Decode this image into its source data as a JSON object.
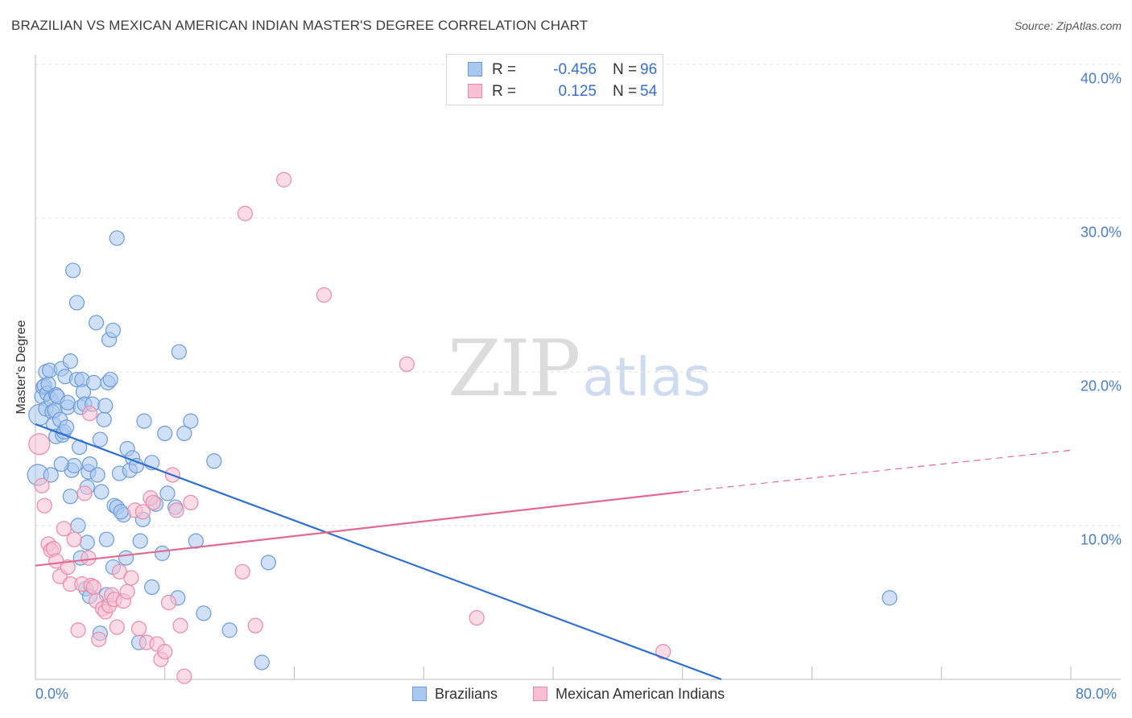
{
  "title": "BRAZILIAN VS MEXICAN AMERICAN INDIAN MASTER'S DEGREE CORRELATION CHART",
  "source": "Source: ZipAtlas.com",
  "watermark": {
    "zip": "ZIP",
    "atlas": "atlas"
  },
  "colors": {
    "blue_fill": "#a9c8f0",
    "blue_stroke": "#6d9ad8",
    "blue_line": "#2f6fcf",
    "pink_fill": "#f7bfd1",
    "pink_stroke": "#e88aa8",
    "pink_line": "#e06a92",
    "grid": "#e2e2e2",
    "tick_text": "#4a7cc8"
  },
  "legend_top": [
    {
      "r_label": "R =",
      "r_value": "-0.456",
      "n_label": "N =",
      "n_value": "96",
      "color": "blue"
    },
    {
      "r_label": "R =",
      "r_value": "0.125",
      "n_label": "N =",
      "n_value": "54",
      "color": "pink"
    }
  ],
  "legend_bottom": [
    {
      "label": "Brazilians",
      "color": "blue"
    },
    {
      "label": "Mexican American Indians",
      "color": "pink"
    }
  ],
  "chart_data": {
    "type": "scatter",
    "title": "BRAZILIAN VS MEXICAN AMERICAN INDIAN MASTER'S DEGREE CORRELATION CHART",
    "xlabel": "",
    "ylabel": "Master's Degree",
    "xlim": [
      0,
      80
    ],
    "ylim": [
      0,
      40
    ],
    "x_tick_labels": [
      "0.0%",
      "80.0%"
    ],
    "y_ticks": [
      10,
      20,
      30,
      40
    ],
    "y_tick_labels": [
      "10.0%",
      "20.0%",
      "30.0%",
      "40.0%"
    ],
    "grid": true,
    "legend_position": "top-center",
    "series": [
      {
        "name": "Brazilians",
        "color": "#a9c8f0",
        "trend": {
          "x": [
            0,
            53
          ],
          "y": [
            16.6,
            0
          ]
        },
        "points": [
          [
            0.3,
            17.2
          ],
          [
            0.5,
            18.4
          ],
          [
            0.6,
            19.0
          ],
          [
            0.7,
            19.1
          ],
          [
            0.8,
            17.6
          ],
          [
            0.8,
            20.0
          ],
          [
            0.9,
            18.6
          ],
          [
            1.0,
            19.2
          ],
          [
            1.1,
            20.1
          ],
          [
            1.2,
            18.2
          ],
          [
            1.3,
            17.4
          ],
          [
            1.4,
            16.6
          ],
          [
            1.5,
            17.5
          ],
          [
            1.6,
            18.5
          ],
          [
            1.6,
            15.8
          ],
          [
            1.7,
            18.4
          ],
          [
            1.9,
            16.9
          ],
          [
            2.0,
            20.2
          ],
          [
            2.1,
            15.9
          ],
          [
            2.2,
            16.1
          ],
          [
            2.3,
            19.7
          ],
          [
            2.4,
            16.4
          ],
          [
            2.5,
            17.7
          ],
          [
            2.5,
            18.0
          ],
          [
            2.7,
            20.7
          ],
          [
            2.8,
            13.6
          ],
          [
            3.0,
            13.9
          ],
          [
            3.2,
            19.5
          ],
          [
            3.4,
            15.1
          ],
          [
            3.5,
            17.7
          ],
          [
            3.6,
            19.5
          ],
          [
            3.7,
            18.7
          ],
          [
            3.8,
            17.9
          ],
          [
            4.0,
            12.5
          ],
          [
            4.1,
            13.5
          ],
          [
            4.2,
            14.0
          ],
          [
            4.4,
            17.9
          ],
          [
            4.5,
            19.3
          ],
          [
            4.8,
            13.3
          ],
          [
            5.0,
            15.6
          ],
          [
            5.1,
            12.2
          ],
          [
            5.3,
            16.9
          ],
          [
            5.4,
            17.8
          ],
          [
            5.6,
            19.3
          ],
          [
            5.8,
            19.5
          ],
          [
            6.1,
            11.3
          ],
          [
            6.3,
            11.2
          ],
          [
            6.5,
            13.4
          ],
          [
            6.8,
            10.7
          ],
          [
            7.1,
            15.0
          ],
          [
            7.3,
            13.6
          ],
          [
            7.5,
            14.4
          ],
          [
            8.1,
            9.0
          ],
          [
            8.4,
            16.8
          ],
          [
            9.0,
            14.1
          ],
          [
            9.3,
            11.4
          ],
          [
            10.2,
            12.1
          ],
          [
            10.8,
            11.2
          ],
          [
            11.5,
            16.0
          ],
          [
            12.0,
            16.8
          ],
          [
            13.8,
            14.2
          ],
          [
            5.5,
            9.1
          ],
          [
            6.0,
            7.3
          ],
          [
            7.0,
            7.9
          ],
          [
            3.5,
            7.9
          ],
          [
            3.9,
            5.9
          ],
          [
            4.2,
            5.4
          ],
          [
            5.0,
            3.0
          ],
          [
            9.0,
            6.0
          ],
          [
            11.0,
            5.3
          ],
          [
            13.0,
            4.3
          ],
          [
            15.0,
            3.2
          ],
          [
            17.5,
            1.1
          ],
          [
            8.0,
            2.4
          ],
          [
            4.7,
            23.2
          ],
          [
            3.2,
            24.5
          ],
          [
            2.9,
            26.6
          ],
          [
            6.3,
            28.7
          ],
          [
            5.7,
            22.1
          ],
          [
            6.0,
            22.7
          ],
          [
            11.1,
            21.3
          ],
          [
            8.3,
            10.4
          ],
          [
            9.8,
            8.2
          ],
          [
            18.0,
            7.6
          ],
          [
            66.0,
            5.3
          ],
          [
            0.2,
            13.3
          ],
          [
            1.2,
            13.3
          ],
          [
            2.7,
            11.9
          ],
          [
            4.0,
            8.9
          ],
          [
            5.5,
            5.5
          ],
          [
            12.4,
            9.0
          ],
          [
            3.3,
            10.0
          ],
          [
            7.8,
            13.9
          ],
          [
            10.0,
            16.0
          ],
          [
            2.0,
            14.0
          ],
          [
            6.6,
            10.9
          ]
        ]
      },
      {
        "name": "Mexican American Indians",
        "color": "#f7bfd1",
        "trend": {
          "x": [
            0,
            50
          ],
          "y": [
            7.4,
            12.2
          ]
        },
        "trend_dashed": {
          "x": [
            50,
            80
          ],
          "y": [
            12.2,
            14.9
          ]
        },
        "points": [
          [
            0.3,
            15.3
          ],
          [
            0.5,
            12.6
          ],
          [
            0.7,
            11.3
          ],
          [
            1.0,
            8.8
          ],
          [
            1.2,
            8.4
          ],
          [
            1.4,
            8.5
          ],
          [
            1.6,
            7.7
          ],
          [
            1.9,
            6.7
          ],
          [
            2.2,
            9.8
          ],
          [
            2.5,
            7.3
          ],
          [
            2.7,
            6.2
          ],
          [
            3.0,
            9.1
          ],
          [
            3.3,
            3.2
          ],
          [
            3.6,
            6.2
          ],
          [
            3.8,
            12.1
          ],
          [
            4.1,
            7.9
          ],
          [
            4.3,
            6.1
          ],
          [
            4.5,
            6.0
          ],
          [
            4.7,
            5.1
          ],
          [
            4.9,
            2.6
          ],
          [
            5.2,
            4.6
          ],
          [
            5.4,
            4.4
          ],
          [
            5.7,
            4.8
          ],
          [
            5.9,
            5.5
          ],
          [
            6.1,
            5.2
          ],
          [
            6.3,
            3.4
          ],
          [
            6.5,
            7.0
          ],
          [
            6.8,
            5.1
          ],
          [
            7.1,
            5.7
          ],
          [
            7.4,
            6.6
          ],
          [
            7.7,
            11.0
          ],
          [
            8.0,
            3.3
          ],
          [
            8.3,
            10.9
          ],
          [
            8.6,
            2.4
          ],
          [
            8.9,
            11.8
          ],
          [
            9.1,
            11.5
          ],
          [
            9.4,
            2.3
          ],
          [
            9.7,
            1.3
          ],
          [
            10.0,
            1.8
          ],
          [
            10.3,
            5.0
          ],
          [
            10.6,
            13.3
          ],
          [
            10.9,
            11.0
          ],
          [
            11.2,
            3.5
          ],
          [
            11.5,
            0.2
          ],
          [
            12.0,
            11.5
          ],
          [
            16.0,
            7.0
          ],
          [
            17.0,
            3.5
          ],
          [
            16.2,
            30.3
          ],
          [
            19.2,
            32.5
          ],
          [
            22.3,
            25.0
          ],
          [
            28.7,
            20.5
          ],
          [
            34.1,
            4.0
          ],
          [
            48.5,
            1.8
          ],
          [
            4.2,
            17.3
          ]
        ]
      }
    ]
  }
}
